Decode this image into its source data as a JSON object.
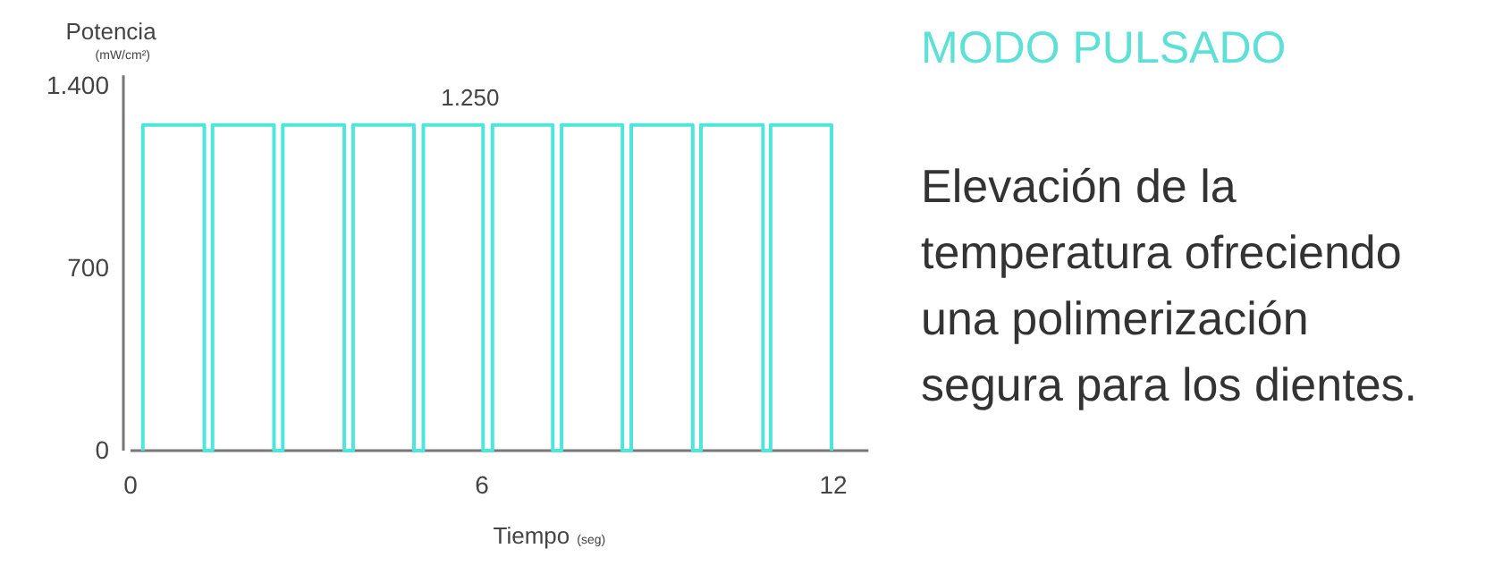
{
  "chart_data": {
    "type": "step",
    "title": "MODO PULSADO",
    "subtitle": "Elevación de la temperatura ofreciendo una polimerización segura para los dientes.",
    "ylabel": "Potencia (mW/cm²)",
    "xlabel": "Tiempo (seg)",
    "x": [
      0.21,
      0.21,
      1.26,
      1.4,
      2.45,
      2.6,
      3.65,
      3.8,
      4.84,
      5.0,
      6.02,
      6.18,
      7.21,
      7.36,
      8.4,
      8.55,
      9.6,
      9.74,
      10.8,
      10.93,
      11.97
    ],
    "series": [
      {
        "color": "#4ee6dc",
        "values": [
          0,
          1250,
          0,
          1250,
          0,
          1250,
          0,
          1250,
          0,
          1250,
          0,
          1250,
          0,
          1250,
          0,
          1250,
          0,
          1250,
          0,
          1250,
          0
        ]
      }
    ],
    "xlim": [
      0,
      12.6
    ],
    "xticks": [
      0,
      6,
      12
    ],
    "ylim": [
      0,
      1440
    ],
    "yticks": [
      0,
      {
        "value": 700,
        "label": "700"
      },
      {
        "value": 1400,
        "label": "1.400"
      }
    ],
    "annotations": [
      {
        "text": "1.250",
        "x": 5.8,
        "y": 1250
      }
    ],
    "grid": false
  }
}
